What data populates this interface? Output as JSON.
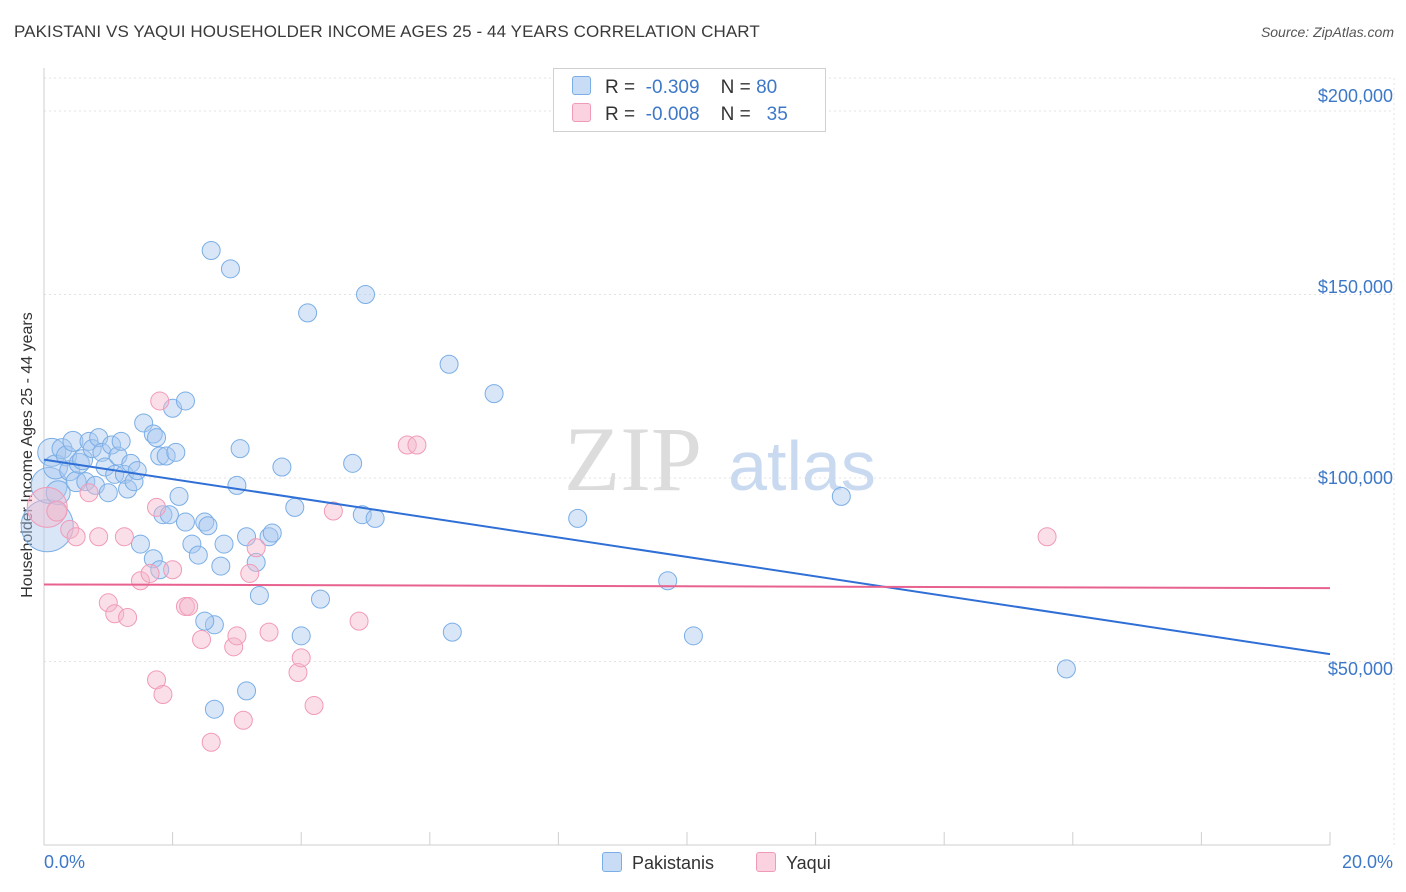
{
  "title": "PAKISTANI VS YAQUI HOUSEHOLDER INCOME AGES 25 - 44 YEARS CORRELATION CHART",
  "source": "Source: ZipAtlas.com",
  "watermark": {
    "zip": "ZIP",
    "atlas": "atlas"
  },
  "legend": {
    "rows": [
      {
        "r_label": "R =",
        "r_value": "-0.309",
        "n_label": "N =",
        "n_value": "80",
        "color": "#a9c8f0"
      },
      {
        "r_label": "R =",
        "r_value": "-0.008",
        "n_label": "N =",
        "n_value": "35",
        "color": "#f5b8cc"
      }
    ]
  },
  "bottom_legend": [
    {
      "label": "Pakistanis",
      "color": "#a9c8f0"
    },
    {
      "label": "Yaqui",
      "color": "#f5b8cc"
    }
  ],
  "chart_data": {
    "type": "scatter",
    "title": "PAKISTANI VS YAQUI HOUSEHOLDER INCOME AGES 25 - 44 YEARS CORRELATION CHART",
    "xlabel": "",
    "ylabel": "Householder Income Ages 25 - 44 years",
    "xlim": [
      0,
      20
    ],
    "ylim": [
      0,
      200000
    ],
    "x_tick_labels": [
      "0.0%",
      "20.0%"
    ],
    "y_tick_labels": [
      "$50,000",
      "$100,000",
      "$150,000",
      "$200,000"
    ],
    "y_ticks": [
      50000,
      100000,
      150000,
      200000
    ],
    "grid": true,
    "legend_position": "top-center",
    "series": [
      {
        "name": "Pakistanis",
        "color": "#7aaee6",
        "trend": {
          "x": [
            0,
            20
          ],
          "y": [
            105000,
            52000
          ],
          "color": "#2f6fd6"
        },
        "points": [
          [
            0.05,
            87000,
            26
          ],
          [
            0.08,
            98000,
            18
          ],
          [
            0.12,
            107000,
            14
          ],
          [
            0.18,
            103000,
            12
          ],
          [
            0.22,
            96000,
            12
          ],
          [
            0.28,
            108000,
            10
          ],
          [
            0.35,
            106000,
            10
          ],
          [
            0.4,
            102000,
            10
          ],
          [
            0.45,
            110000,
            10
          ],
          [
            0.5,
            99000,
            10
          ],
          [
            0.55,
            104000,
            10
          ],
          [
            0.6,
            105000,
            10
          ],
          [
            0.65,
            99000,
            9
          ],
          [
            0.7,
            110000,
            9
          ],
          [
            0.75,
            108000,
            9
          ],
          [
            0.8,
            98000,
            9
          ],
          [
            0.85,
            111000,
            9
          ],
          [
            0.9,
            107000,
            9
          ],
          [
            0.95,
            103000,
            9
          ],
          [
            1.0,
            96000,
            9
          ],
          [
            1.05,
            109000,
            9
          ],
          [
            1.1,
            101000,
            9
          ],
          [
            1.15,
            106000,
            9
          ],
          [
            1.2,
            110000,
            9
          ],
          [
            1.25,
            101000,
            9
          ],
          [
            1.3,
            97000,
            9
          ],
          [
            1.35,
            104000,
            9
          ],
          [
            1.4,
            99000,
            9
          ],
          [
            1.45,
            102000,
            9
          ],
          [
            1.55,
            115000,
            9
          ],
          [
            1.7,
            112000,
            9
          ],
          [
            1.75,
            111000,
            9
          ],
          [
            1.8,
            106000,
            9
          ],
          [
            1.9,
            106000,
            9
          ],
          [
            2.0,
            119000,
            9
          ],
          [
            2.05,
            107000,
            9
          ],
          [
            2.2,
            121000,
            9
          ],
          [
            1.85,
            90000,
            9
          ],
          [
            2.1,
            95000,
            9
          ],
          [
            2.2,
            88000,
            9
          ],
          [
            2.3,
            82000,
            9
          ],
          [
            2.4,
            79000,
            9
          ],
          [
            1.5,
            82000,
            9
          ],
          [
            1.7,
            78000,
            9
          ],
          [
            1.8,
            75000,
            9
          ],
          [
            2.5,
            88000,
            9
          ],
          [
            2.55,
            87000,
            9
          ],
          [
            2.75,
            76000,
            9
          ],
          [
            2.8,
            82000,
            9
          ],
          [
            3.0,
            98000,
            9
          ],
          [
            3.05,
            108000,
            9
          ],
          [
            3.15,
            84000,
            9
          ],
          [
            3.3,
            77000,
            9
          ],
          [
            3.5,
            84000,
            9
          ],
          [
            3.35,
            68000,
            9
          ],
          [
            3.55,
            85000,
            9
          ],
          [
            3.7,
            103000,
            9
          ],
          [
            3.9,
            92000,
            9
          ],
          [
            4.0,
            57000,
            9
          ],
          [
            3.15,
            42000,
            9
          ],
          [
            2.65,
            37000,
            9
          ],
          [
            2.65,
            60000,
            9
          ],
          [
            4.3,
            67000,
            9
          ],
          [
            4.8,
            104000,
            9
          ],
          [
            4.95,
            90000,
            9
          ],
          [
            5.0,
            150000,
            9
          ],
          [
            5.15,
            89000,
            9
          ],
          [
            6.3,
            131000,
            9
          ],
          [
            6.35,
            58000,
            9
          ],
          [
            7.0,
            123000,
            9
          ],
          [
            8.3,
            89000,
            9
          ],
          [
            9.7,
            72000,
            9
          ],
          [
            10.1,
            57000,
            9
          ],
          [
            12.4,
            95000,
            9
          ],
          [
            15.9,
            48000,
            9
          ],
          [
            2.9,
            157000,
            9
          ],
          [
            2.6,
            162000,
            9
          ],
          [
            4.1,
            145000,
            9
          ],
          [
            1.95,
            90000,
            9
          ],
          [
            2.5,
            61000,
            9
          ]
        ]
      },
      {
        "name": "Yaqui",
        "color": "#f19ab8",
        "trend": {
          "x": [
            0,
            20
          ],
          "y": [
            71000,
            70000
          ],
          "color": "#e8628f"
        },
        "points": [
          [
            0.05,
            92000,
            20
          ],
          [
            0.2,
            91000,
            10
          ],
          [
            0.4,
            86000,
            9
          ],
          [
            0.5,
            84000,
            9
          ],
          [
            0.7,
            96000,
            9
          ],
          [
            0.85,
            84000,
            9
          ],
          [
            1.0,
            66000,
            9
          ],
          [
            1.1,
            63000,
            9
          ],
          [
            1.3,
            62000,
            9
          ],
          [
            1.25,
            84000,
            9
          ],
          [
            1.5,
            72000,
            9
          ],
          [
            1.65,
            74000,
            9
          ],
          [
            1.75,
            45000,
            9
          ],
          [
            1.85,
            41000,
            9
          ],
          [
            1.8,
            121000,
            9
          ],
          [
            2.0,
            75000,
            9
          ],
          [
            2.2,
            65000,
            9
          ],
          [
            2.25,
            65000,
            9
          ],
          [
            2.45,
            56000,
            9
          ],
          [
            2.6,
            28000,
            9
          ],
          [
            2.95,
            54000,
            9
          ],
          [
            3.0,
            57000,
            9
          ],
          [
            3.1,
            34000,
            9
          ],
          [
            3.2,
            74000,
            9
          ],
          [
            3.3,
            81000,
            9
          ],
          [
            3.5,
            58000,
            9
          ],
          [
            3.95,
            47000,
            9
          ],
          [
            4.0,
            51000,
            9
          ],
          [
            4.2,
            38000,
            9
          ],
          [
            4.5,
            91000,
            9
          ],
          [
            4.9,
            61000,
            9
          ],
          [
            5.65,
            109000,
            9
          ],
          [
            5.8,
            109000,
            9
          ],
          [
            15.6,
            84000,
            9
          ],
          [
            1.75,
            92000,
            9
          ]
        ]
      }
    ]
  }
}
